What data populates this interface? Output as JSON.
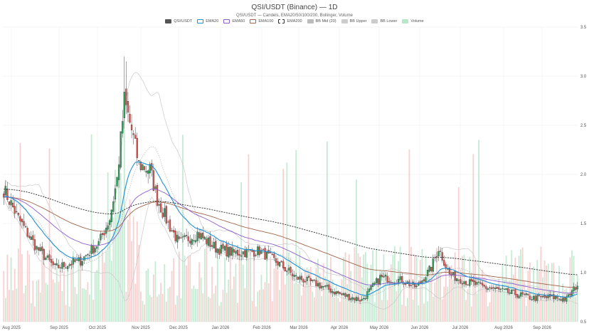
{
  "title": "QSI/USDT (Binance) — 1D",
  "subtitle": "QSI/USDT — Candels, EMA20/50/100/200, Bollinger, Volume",
  "legend": [
    {
      "label": "QSI/USDT",
      "color": "#555555",
      "style": "fill"
    },
    {
      "label": "EMA20",
      "color": "#1f8fd6",
      "style": "line"
    },
    {
      "label": "EMA50",
      "color": "#8a5fd1",
      "style": "line"
    },
    {
      "label": "EMA100",
      "color": "#a0654a",
      "style": "line"
    },
    {
      "label": "EMA200",
      "color": "#333333",
      "style": "dash"
    },
    {
      "label": "BB Mid (20)",
      "color": "#bbbbbb",
      "style": "fill"
    },
    {
      "label": "BB Upper",
      "color": "#cccccc",
      "style": "fill"
    },
    {
      "label": "BB Lower",
      "color": "#cccccc",
      "style": "fill"
    },
    {
      "label": "Volume",
      "color": "#b7e6c8",
      "style": "fill"
    }
  ],
  "chart_data": {
    "type": "candlestick",
    "title": "QSI/USDT (Binance) — 1D",
    "subtitle": "QSI/USDT — Candels, EMA20/50/100/200, Bollinger, Volume",
    "x_ticks": [
      "Aug 2025",
      "Sep 2025",
      "Oct 2025",
      "Nov 2025",
      "Dec 2025",
      "Jan 2026",
      "Feb 2026",
      "Mar 2026",
      "Apr 2026",
      "May 2026",
      "Jun 2026",
      "Jul 2026",
      "Aug 2026",
      "Sep 2026"
    ],
    "y_ticks": [
      0.5,
      1.0,
      1.5,
      2.0,
      2.5,
      3.0,
      3.5
    ],
    "ylim": [
      0.5,
      3.5
    ],
    "y_axis_position": "right",
    "grid": true,
    "colors": {
      "up": "#2e9e5b",
      "down": "#d9534f",
      "vol_up": "#b7e6c8",
      "vol_down": "#f5c6c4"
    },
    "close_anchors": [
      {
        "d": 0,
        "v": 1.85
      },
      {
        "d": 8,
        "v": 1.55
      },
      {
        "d": 18,
        "v": 1.25
      },
      {
        "d": 28,
        "v": 1.05
      },
      {
        "d": 42,
        "v": 1.12
      },
      {
        "d": 52,
        "v": 1.3
      },
      {
        "d": 58,
        "v": 1.55
      },
      {
        "d": 62,
        "v": 1.95
      },
      {
        "d": 66,
        "v": 2.75
      },
      {
        "d": 70,
        "v": 2.45
      },
      {
        "d": 74,
        "v": 2.1
      },
      {
        "d": 80,
        "v": 2.05
      },
      {
        "d": 84,
        "v": 1.75
      },
      {
        "d": 90,
        "v": 1.5
      },
      {
        "d": 96,
        "v": 1.3
      },
      {
        "d": 106,
        "v": 1.4
      },
      {
        "d": 116,
        "v": 1.25
      },
      {
        "d": 126,
        "v": 1.2
      },
      {
        "d": 140,
        "v": 1.22
      },
      {
        "d": 150,
        "v": 1.1
      },
      {
        "d": 160,
        "v": 0.95
      },
      {
        "d": 172,
        "v": 0.88
      },
      {
        "d": 184,
        "v": 0.78
      },
      {
        "d": 196,
        "v": 0.72
      },
      {
        "d": 206,
        "v": 0.95
      },
      {
        "d": 218,
        "v": 0.92
      },
      {
        "d": 226,
        "v": 0.85
      },
      {
        "d": 234,
        "v": 1.05
      },
      {
        "d": 238,
        "v": 1.25
      },
      {
        "d": 244,
        "v": 0.98
      },
      {
        "d": 254,
        "v": 0.9
      },
      {
        "d": 264,
        "v": 0.85
      },
      {
        "d": 276,
        "v": 0.8
      },
      {
        "d": 290,
        "v": 0.74
      },
      {
        "d": 300,
        "v": 0.75
      },
      {
        "d": 308,
        "v": 0.73
      },
      {
        "d": 314,
        "v": 0.88
      }
    ],
    "days": 315
  }
}
